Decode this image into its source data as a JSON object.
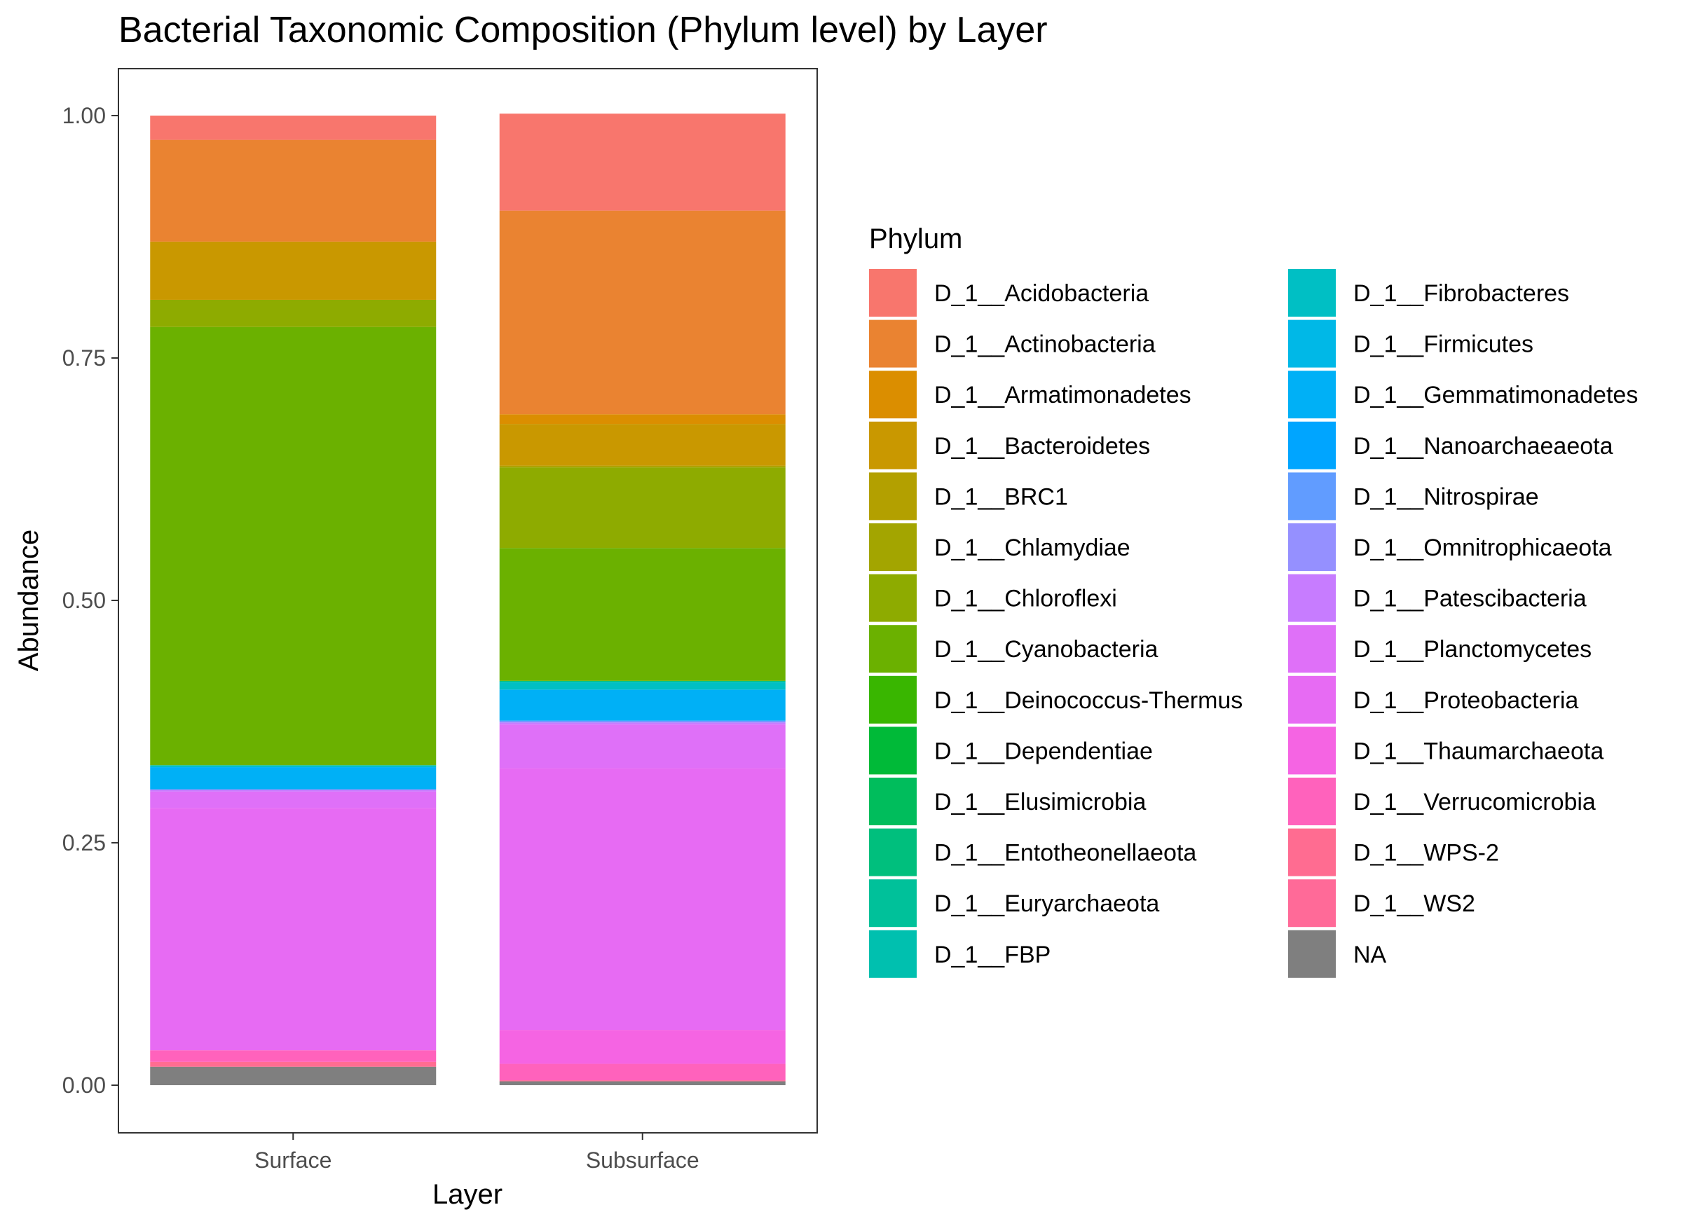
{
  "chart_data": {
    "type": "bar",
    "stacked": true,
    "normalized": true,
    "title": "Bacterial Taxonomic Composition (Phylum level) by Layer",
    "xlabel": "Layer",
    "ylabel": "Abundance",
    "ylim": [
      0,
      1
    ],
    "yticks": [
      "0.00",
      "0.25",
      "0.50",
      "0.75",
      "1.00"
    ],
    "ytick_values": [
      0,
      0.25,
      0.5,
      0.75,
      1.0
    ],
    "categories": [
      "Surface",
      "Subsurface"
    ],
    "grid": false,
    "legend_position": "right",
    "legend_title": "Phylum",
    "legend_columns": 2,
    "series": [
      {
        "name": "D_1__Acidobacteria",
        "color": "#F8766D",
        "values": [
          0.025,
          0.1
        ]
      },
      {
        "name": "D_1__Actinobacteria",
        "color": "#EA8331",
        "values": [
          0.105,
          0.21
        ]
      },
      {
        "name": "D_1__Armatimonadetes",
        "color": "#DB8E00",
        "values": [
          0.0,
          0.01
        ]
      },
      {
        "name": "D_1__Bacteroidetes",
        "color": "#C99800",
        "values": [
          0.06,
          0.043
        ]
      },
      {
        "name": "D_1__BRC1",
        "color": "#B3A000",
        "values": [
          0.0,
          0.001
        ]
      },
      {
        "name": "D_1__Chlamydiae",
        "color": "#A3A500",
        "values": [
          0.0,
          0.001
        ]
      },
      {
        "name": "D_1__Chloroflexi",
        "color": "#8EAB00",
        "values": [
          0.028,
          0.083
        ]
      },
      {
        "name": "D_1__Cyanobacteria",
        "color": "#6BB100",
        "values": [
          0.452,
          0.137
        ]
      },
      {
        "name": "D_1__Deinococcus-Thermus",
        "color": "#39B600",
        "values": [
          0.0,
          0.0
        ]
      },
      {
        "name": "D_1__Dependentiae",
        "color": "#00BA38",
        "values": [
          0.0,
          0.0
        ]
      },
      {
        "name": "D_1__Elusimicrobia",
        "color": "#00BD5C",
        "values": [
          0.0,
          0.0
        ]
      },
      {
        "name": "D_1__Entotheonellaeota",
        "color": "#00BF7D",
        "values": [
          0.0,
          0.001
        ]
      },
      {
        "name": "D_1__Euryarchaeota",
        "color": "#00C19A",
        "values": [
          0.0,
          0.0
        ]
      },
      {
        "name": "D_1__FBP",
        "color": "#00C0AF",
        "values": [
          0.0,
          0.0
        ]
      },
      {
        "name": "D_1__Fibrobacteres",
        "color": "#00BFC4",
        "values": [
          0.002,
          0.008
        ]
      },
      {
        "name": "D_1__Firmicutes",
        "color": "#00B8E7",
        "values": [
          0.0,
          0.0
        ]
      },
      {
        "name": "D_1__Gemmatimonadetes",
        "color": "#00B0F6",
        "values": [
          0.023,
          0.032
        ]
      },
      {
        "name": "D_1__Nanoarchaeaeota",
        "color": "#00A5FF",
        "values": [
          0.0,
          0.0
        ]
      },
      {
        "name": "D_1__Nitrospirae",
        "color": "#619CFF",
        "values": [
          0.0,
          0.001
        ]
      },
      {
        "name": "D_1__Omnitrophicaeota",
        "color": "#9590FF",
        "values": [
          0.0,
          0.001
        ]
      },
      {
        "name": "D_1__Patescibacteria",
        "color": "#C77CFF",
        "values": [
          0.002,
          0.002
        ]
      },
      {
        "name": "D_1__Planctomycetes",
        "color": "#DF70F8",
        "values": [
          0.017,
          0.045
        ]
      },
      {
        "name": "D_1__Proteobacteria",
        "color": "#E76BF3",
        "values": [
          0.25,
          0.27
        ]
      },
      {
        "name": "D_1__Thaumarchaeota",
        "color": "#F564E3",
        "values": [
          0.0,
          0.035
        ]
      },
      {
        "name": "D_1__Verrucomicrobia",
        "color": "#FF62BC",
        "values": [
          0.012,
          0.017
        ]
      },
      {
        "name": "D_1__WPS-2",
        "color": "#FF6C91",
        "values": [
          0.005,
          0.001
        ]
      },
      {
        "name": "D_1__WS2",
        "color": "#FF6A98",
        "values": [
          0.0,
          0.0
        ]
      },
      {
        "name": "NA",
        "color": "#7F7F7F",
        "values": [
          0.019,
          0.004
        ]
      }
    ]
  }
}
